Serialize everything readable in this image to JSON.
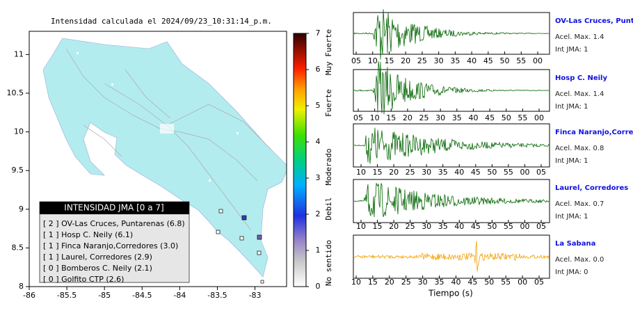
{
  "map": {
    "title": "Intensidad calculada el 2024/09/23_10:31:14_p.m.",
    "xlim": [
      -86,
      -82.58
    ],
    "ylim": [
      8,
      11.3
    ],
    "xticks": [
      -86,
      -85.5,
      -85,
      -84.5,
      -84,
      -83.5,
      -83
    ],
    "yticks": [
      8,
      8.5,
      9,
      9.5,
      10,
      10.5,
      11
    ]
  },
  "colorbar": {
    "lim": [
      0,
      7
    ],
    "ticks": [
      0,
      1,
      2,
      3,
      4,
      5,
      6,
      7
    ],
    "levels": [
      "Muy Fuerte",
      "Fuerte",
      "Moderado",
      "Debil",
      "No sentido"
    ]
  },
  "legend": {
    "title": "INTENSIDAD JMA [0 a 7]",
    "entries": [
      "[ 2 ]  OV-Las Cruces, Puntarenas (6.8)",
      "[ 1 ]  Hosp C. Neily (6.1)",
      "[ 1 ]  Finca Naranjo,Corredores (3.0)",
      "[ 1 ]  Laurel, Corredores (2.9)",
      "[ 0 ]  Bomberos C. Neily (2.1)",
      "[ 0 ]  Golfito CTP (2.6)"
    ]
  },
  "traces": [
    {
      "name": "OV-Las Cruces, Puntarenas",
      "accel": "Acel. Max. 1.4",
      "jma": "Int JMA: 1",
      "ticks": [
        "05",
        "10",
        "15",
        "20",
        "25",
        "30",
        "35",
        "40",
        "45",
        "50",
        "55",
        "00"
      ]
    },
    {
      "name": "Hosp C. Neily",
      "accel": "Acel. Max. 1.4",
      "jma": "Int JMA: 1",
      "ticks": [
        "05",
        "10",
        "15",
        "20",
        "25",
        "30",
        "35",
        "40",
        "45",
        "50",
        "55",
        "00"
      ]
    },
    {
      "name": "Finca Naranjo,Corredores",
      "accel": "Acel. Max. 0.8",
      "jma": "Int JMA: 1",
      "ticks": [
        "10",
        "15",
        "20",
        "25",
        "30",
        "35",
        "40",
        "45",
        "50",
        "55",
        "00",
        "05"
      ]
    },
    {
      "name": "Laurel, Corredores",
      "accel": "Acel. Max. 0.7",
      "jma": "Int JMA: 1",
      "ticks": [
        "10",
        "15",
        "20",
        "25",
        "30",
        "35",
        "40",
        "45",
        "50",
        "55",
        "00",
        "05"
      ]
    },
    {
      "name": "La Sabana",
      "accel": "Acel. Max. 0.0",
      "jma": "Int JMA: 0",
      "ticks": [
        "10",
        "15",
        "20",
        "25",
        "30",
        "35",
        "40",
        "45",
        "50",
        "55",
        "00",
        "05"
      ]
    }
  ],
  "xlabel": "Tiempo (s)"
}
